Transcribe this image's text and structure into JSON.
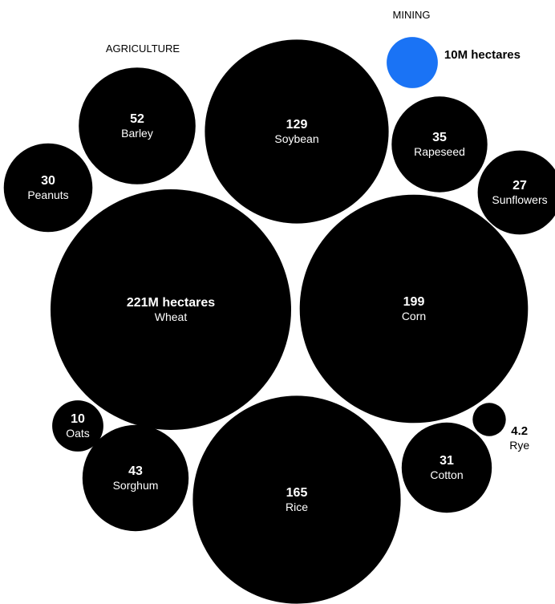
{
  "chart_data": {
    "type": "bubble",
    "groups": [
      {
        "name": "AGRICULTURE",
        "color": "#000000",
        "text_color": "#ffffff",
        "items": [
          {
            "name": "Wheat",
            "value": 221,
            "label": "221M hectares"
          },
          {
            "name": "Corn",
            "value": 199,
            "label": "199"
          },
          {
            "name": "Rice",
            "value": 165,
            "label": "165"
          },
          {
            "name": "Soybean",
            "value": 129,
            "label": "129"
          },
          {
            "name": "Barley",
            "value": 52,
            "label": "52"
          },
          {
            "name": "Sorghum",
            "value": 43,
            "label": "43"
          },
          {
            "name": "Rapeseed",
            "value": 35,
            "label": "35"
          },
          {
            "name": "Cotton",
            "value": 31,
            "label": "31"
          },
          {
            "name": "Peanuts",
            "value": 30,
            "label": "30"
          },
          {
            "name": "Sunflowers",
            "value": 27,
            "label": "27"
          },
          {
            "name": "Oats",
            "value": 10,
            "label": "10"
          },
          {
            "name": "Rye",
            "value": 4.2,
            "label": "4.2"
          }
        ]
      },
      {
        "name": "MINING",
        "color": "#1a73f5",
        "text_color": "#000000",
        "items": [
          {
            "name": "",
            "value": 10,
            "label": "10M hectares"
          }
        ]
      }
    ]
  }
}
